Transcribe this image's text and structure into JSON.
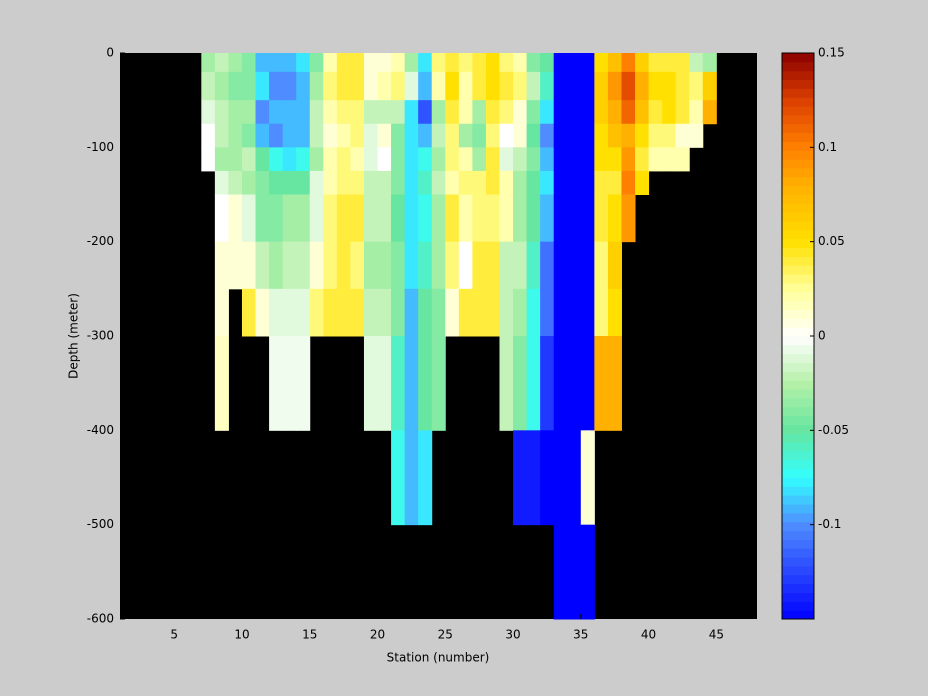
{
  "chart_data": {
    "type": "heatmap",
    "xlabel": "Station (number)",
    "ylabel": "Depth (meter)",
    "xlim": [
      1,
      48
    ],
    "ylim": [
      -600,
      0
    ],
    "xticks": [
      5,
      10,
      15,
      20,
      25,
      30,
      35,
      40,
      45
    ],
    "yticks": [
      0,
      -100,
      -200,
      -300,
      -400,
      -500,
      -600
    ],
    "background": "#000000",
    "x_edges": [
      1,
      2,
      3,
      4,
      5,
      6,
      7,
      8,
      9,
      10,
      11,
      12,
      13,
      14,
      15,
      16,
      17,
      18,
      19,
      20,
      21,
      22,
      23,
      24,
      25,
      26,
      27,
      28,
      29,
      30,
      31,
      32,
      33,
      34,
      35,
      36,
      37,
      38,
      39,
      40,
      41,
      42,
      43,
      44,
      45,
      46,
      47,
      48
    ],
    "y_edges": [
      0,
      -20,
      -50,
      -75,
      -100,
      -125,
      -150,
      -200,
      -250,
      -300,
      -400,
      -500,
      -600
    ],
    "z": [
      [
        null,
        null,
        null,
        null,
        null,
        null,
        null,
        null,
        null,
        null,
        null,
        null
      ],
      [
        null,
        null,
        null,
        null,
        null,
        null,
        null,
        null,
        null,
        null,
        null,
        null
      ],
      [
        null,
        null,
        null,
        null,
        null,
        null,
        null,
        null,
        null,
        null,
        null,
        null
      ],
      [
        null,
        null,
        null,
        null,
        null,
        null,
        null,
        null,
        null,
        null,
        null,
        null
      ],
      [
        null,
        null,
        null,
        null,
        null,
        null,
        null,
        null,
        null,
        null,
        null,
        null
      ],
      [
        null,
        null,
        null,
        null,
        null,
        null,
        null,
        null,
        null,
        null,
        null,
        null
      ],
      [
        -0.03,
        -0.02,
        -0.01,
        0,
        0,
        null,
        null,
        null,
        null,
        null,
        null,
        null
      ],
      [
        -0.02,
        -0.03,
        -0.02,
        -0.02,
        -0.03,
        -0.01,
        0,
        0.01,
        0.01,
        0.015,
        null,
        null
      ],
      [
        -0.03,
        -0.04,
        -0.03,
        -0.03,
        -0.03,
        -0.02,
        0.01,
        0.01,
        null,
        null,
        null,
        null
      ],
      [
        -0.04,
        -0.04,
        -0.03,
        -0.04,
        -0.02,
        -0.03,
        -0.01,
        0.01,
        0.04,
        null,
        null,
        null
      ],
      [
        -0.09,
        -0.08,
        -0.1,
        -0.09,
        -0.05,
        -0.04,
        -0.04,
        -0.02,
        0.01,
        null,
        null,
        null
      ],
      [
        -0.09,
        -0.1,
        -0.09,
        -0.1,
        -0.07,
        -0.05,
        -0.04,
        -0.03,
        -0.01,
        -0.005,
        null,
        null
      ],
      [
        -0.09,
        -0.1,
        -0.09,
        -0.09,
        -0.08,
        -0.05,
        -0.03,
        -0.02,
        -0.01,
        -0.005,
        null,
        null
      ],
      [
        -0.08,
        -0.09,
        -0.09,
        -0.09,
        -0.07,
        -0.05,
        -0.03,
        -0.02,
        -0.01,
        -0.005,
        null,
        null
      ],
      [
        -0.04,
        -0.03,
        -0.02,
        -0.02,
        -0.03,
        -0.01,
        -0.01,
        0.01,
        0.03,
        null,
        null,
        null
      ],
      [
        0.02,
        0.03,
        0.02,
        0.01,
        0.02,
        0.02,
        0.03,
        0.03,
        0.04,
        null,
        null,
        null
      ],
      [
        0.04,
        0.04,
        0.03,
        0.02,
        0.03,
        0.03,
        0.04,
        0.04,
        0.04,
        null,
        null,
        null
      ],
      [
        0.04,
        0.04,
        0.03,
        0.03,
        0.02,
        0.03,
        0.04,
        0.03,
        0.04,
        null,
        null,
        null
      ],
      [
        0.01,
        0.01,
        -0.02,
        -0.01,
        -0.01,
        -0.02,
        -0.02,
        -0.03,
        -0.02,
        -0.01,
        null,
        null
      ],
      [
        0.01,
        0.02,
        -0.02,
        0.01,
        0,
        -0.02,
        -0.02,
        -0.03,
        -0.02,
        -0.01,
        null,
        null
      ],
      [
        0.02,
        0.03,
        -0.02,
        -0.04,
        -0.04,
        -0.04,
        -0.05,
        -0.04,
        -0.04,
        -0.06,
        -0.07,
        null
      ],
      [
        -0.03,
        -0.01,
        -0.08,
        -0.08,
        -0.08,
        -0.08,
        -0.08,
        -0.08,
        -0.09,
        -0.09,
        -0.09,
        null
      ],
      [
        -0.08,
        -0.09,
        -0.12,
        -0.09,
        -0.07,
        -0.06,
        -0.07,
        -0.06,
        -0.05,
        -0.05,
        -0.08,
        null
      ],
      [
        0.03,
        0.02,
        -0.03,
        -0.02,
        -0.03,
        -0.02,
        -0.03,
        -0.03,
        -0.04,
        -0.04,
        null,
        null
      ],
      [
        0.04,
        0.05,
        0.04,
        0.03,
        0.03,
        0.02,
        0.04,
        0.03,
        0.01,
        null,
        null,
        null
      ],
      [
        0.03,
        0.02,
        0.02,
        -0.03,
        0.02,
        0.03,
        0.02,
        0,
        0.04,
        null,
        null,
        null
      ],
      [
        0.04,
        0.04,
        -0.03,
        -0.04,
        -0.03,
        0.03,
        0.03,
        0.04,
        0.04,
        null,
        null,
        null
      ],
      [
        0.05,
        0.05,
        0.04,
        0.03,
        0.04,
        0.04,
        0.03,
        0.04,
        0.04,
        null,
        null,
        null
      ],
      [
        0.03,
        0.04,
        0.03,
        0,
        -0.01,
        0.02,
        0.02,
        -0.02,
        -0.02,
        -0.02,
        null,
        null
      ],
      [
        0.02,
        0.03,
        0.01,
        0.01,
        -0.02,
        -0.03,
        -0.03,
        -0.02,
        -0.03,
        -0.04,
        -0.14,
        null
      ],
      [
        -0.04,
        -0.02,
        -0.04,
        -0.05,
        -0.04,
        -0.05,
        -0.05,
        -0.06,
        -0.07,
        -0.07,
        -0.14,
        null
      ],
      [
        -0.05,
        -0.06,
        -0.08,
        -0.1,
        -0.09,
        -0.08,
        -0.09,
        -0.11,
        -0.11,
        -0.13,
        -0.15,
        null
      ],
      [
        -0.15,
        -0.15,
        -0.15,
        -0.15,
        -0.15,
        -0.15,
        -0.15,
        -0.15,
        -0.15,
        -0.15,
        -0.15,
        -0.15
      ],
      [
        -0.15,
        -0.15,
        -0.15,
        -0.15,
        -0.15,
        -0.15,
        -0.15,
        -0.15,
        -0.15,
        -0.15,
        -0.15,
        -0.15
      ],
      [
        -0.15,
        -0.15,
        -0.15,
        -0.15,
        -0.15,
        -0.15,
        -0.15,
        -0.15,
        -0.15,
        -0.15,
        0.01,
        -0.15
      ],
      [
        0.05,
        0.06,
        0.06,
        0.05,
        0.05,
        0.04,
        0.04,
        0.03,
        0.03,
        0.08,
        null,
        null
      ],
      [
        0.07,
        0.09,
        0.08,
        0.07,
        0.05,
        0.04,
        0.05,
        0.06,
        0.05,
        0.08,
        null,
        null
      ],
      [
        0.1,
        0.12,
        0.11,
        0.08,
        0.09,
        0.1,
        0.09,
        null,
        null,
        null,
        null,
        null
      ],
      [
        0.06,
        0.08,
        0.07,
        0.05,
        0.04,
        0.05,
        null,
        null,
        null,
        null,
        null,
        null
      ],
      [
        0.04,
        0.05,
        0.04,
        0.03,
        0.02,
        null,
        null,
        null,
        null,
        null,
        null,
        null
      ],
      [
        0.04,
        0.05,
        0.05,
        0.03,
        0.02,
        null,
        null,
        null,
        null,
        null,
        null,
        null
      ],
      [
        0.04,
        0.04,
        0.04,
        0.01,
        0.02,
        null,
        null,
        null,
        null,
        null,
        null,
        null
      ],
      [
        -0.02,
        0.03,
        0.02,
        0.01,
        null,
        null,
        null,
        null,
        null,
        null,
        null,
        null
      ],
      [
        -0.03,
        0.06,
        0.08,
        null,
        null,
        null,
        null,
        null,
        null,
        null,
        null,
        null
      ],
      [
        null,
        null,
        null,
        null,
        null,
        null,
        null,
        null,
        null,
        null,
        null,
        null
      ],
      [
        null,
        null,
        null,
        null,
        null,
        null,
        null,
        null,
        null,
        null,
        null,
        null
      ],
      [
        null,
        null,
        null,
        null,
        null,
        null,
        null,
        null,
        null,
        null,
        null,
        null
      ]
    ],
    "zlim": [
      -0.15,
      0.15
    ],
    "colorbar": {
      "ticks": [
        0.15,
        0.1,
        0.05,
        0,
        -0.05,
        -0.1
      ]
    },
    "colorscale": [
      [
        -0.15,
        "#0000ff"
      ],
      [
        -0.1,
        "#4f8cff"
      ],
      [
        -0.075,
        "#33ffff"
      ],
      [
        -0.05,
        "#66e6a0"
      ],
      [
        -0.025,
        "#b4f0a8"
      ],
      [
        0,
        "#ffffff"
      ],
      [
        0.025,
        "#ffff99"
      ],
      [
        0.05,
        "#ffe000"
      ],
      [
        0.08,
        "#ffb000"
      ],
      [
        0.1,
        "#ff8000"
      ],
      [
        0.125,
        "#dd4000"
      ],
      [
        0.15,
        "#8b0000"
      ]
    ]
  }
}
